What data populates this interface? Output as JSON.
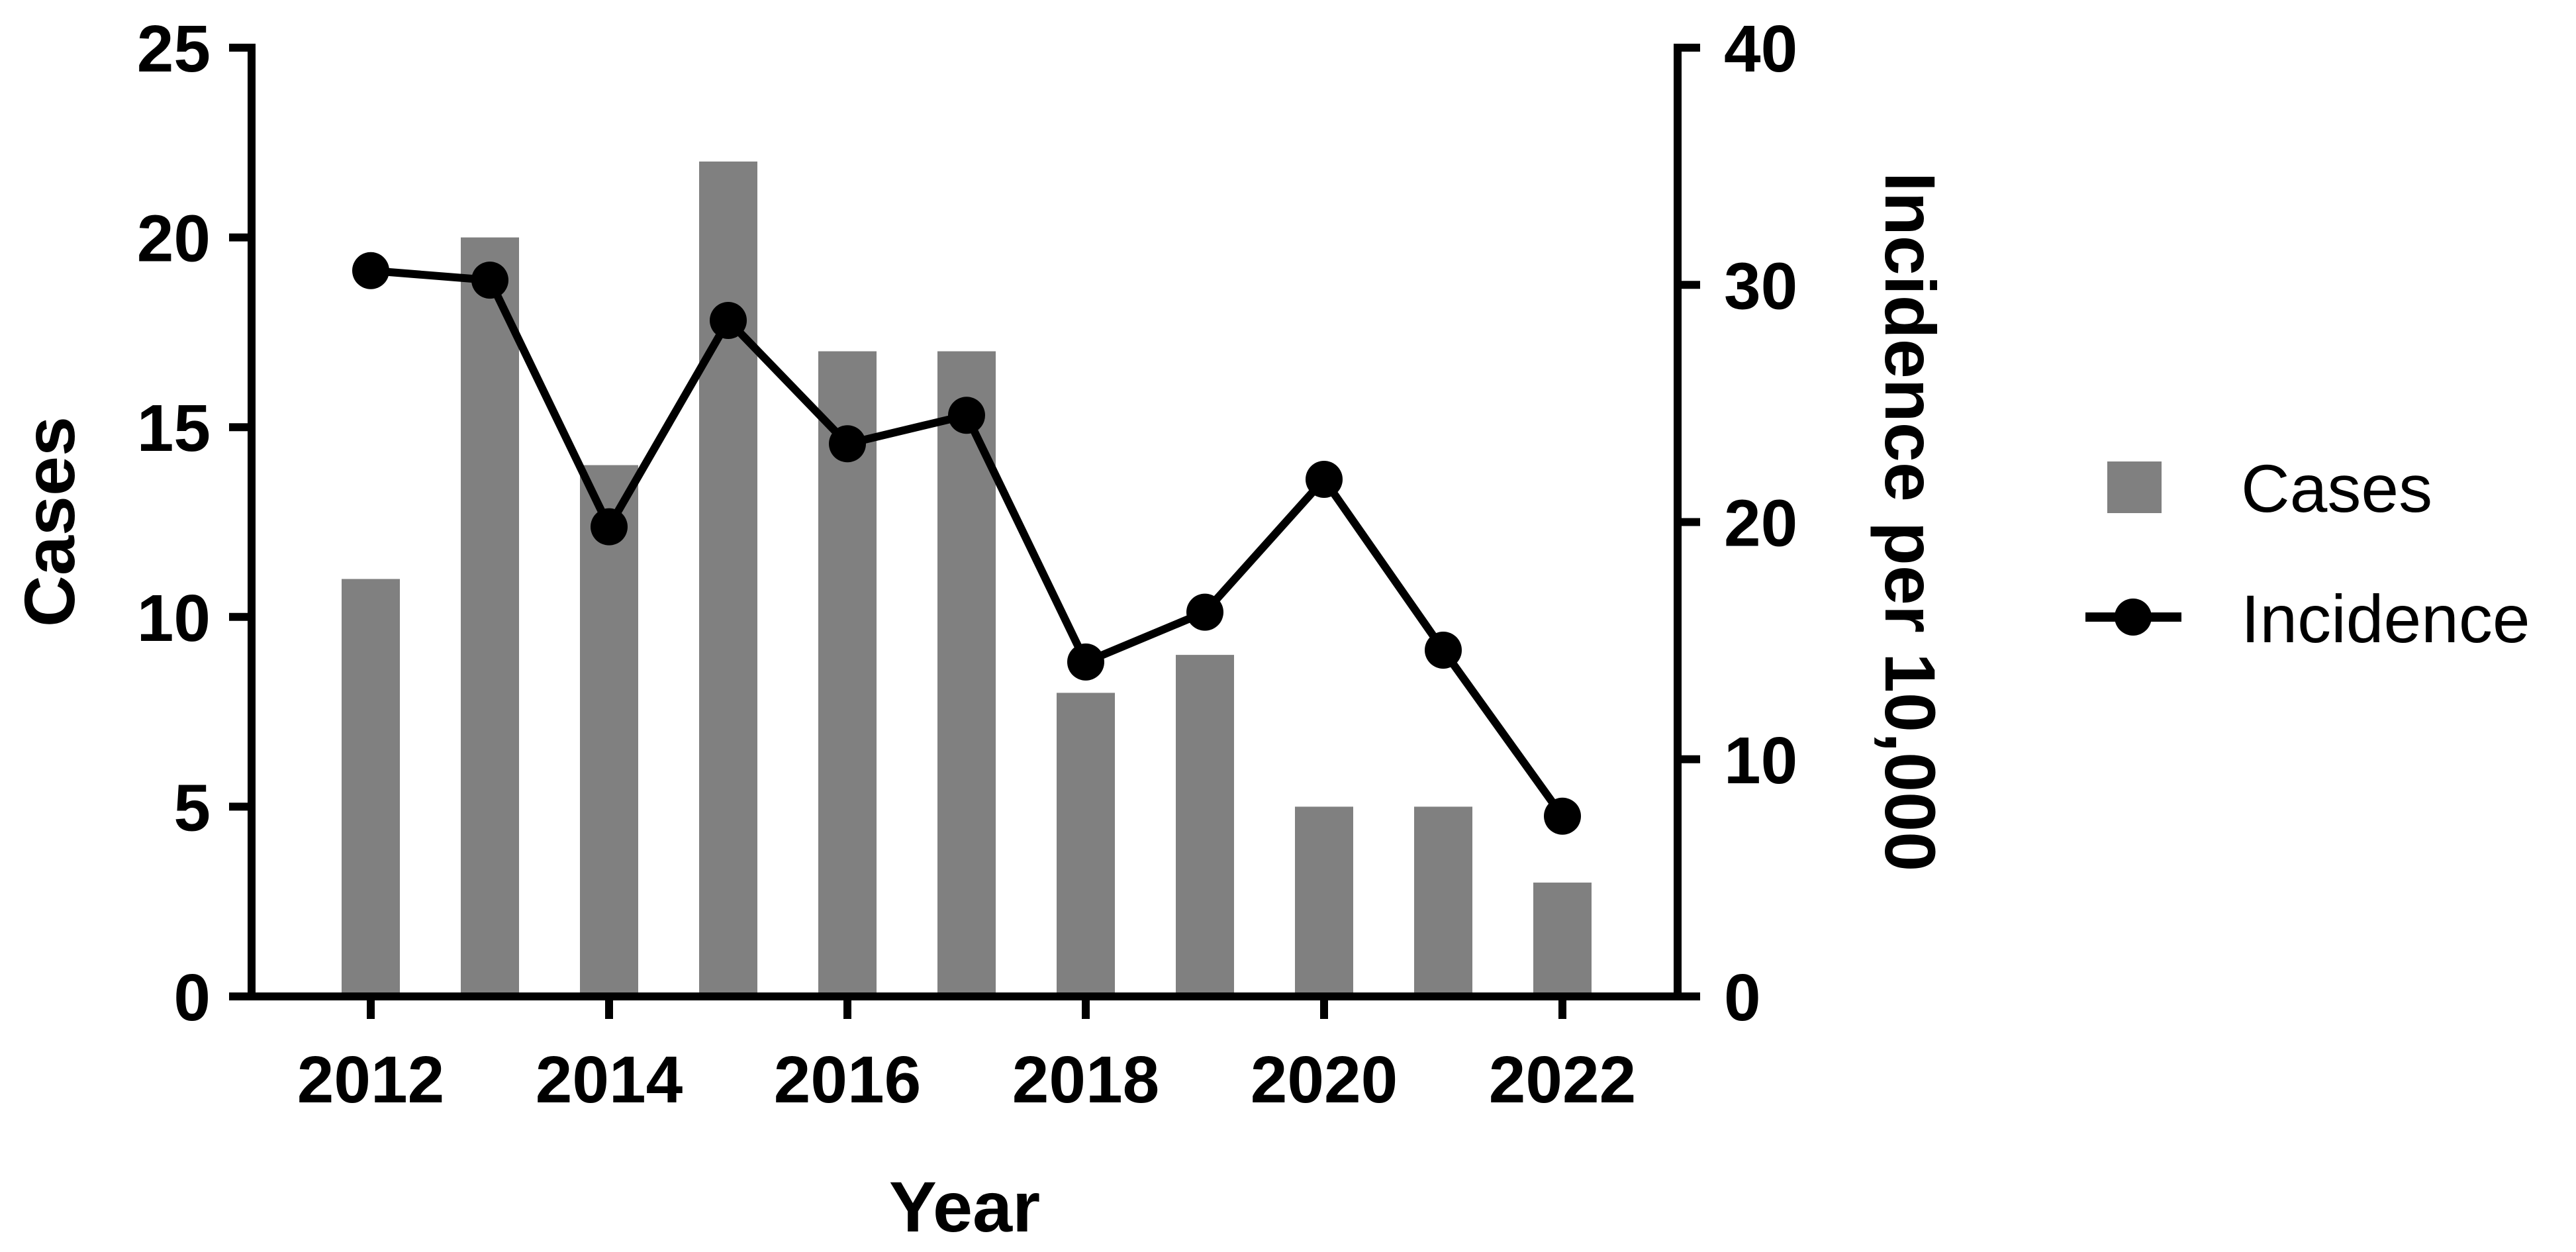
{
  "chart_data": {
    "type": "bar",
    "xlabel": "Year",
    "ylabel": "Cases",
    "y2label": "Incidence per 10,000",
    "x": [
      2012,
      2013,
      2014,
      2015,
      2016,
      2017,
      2018,
      2019,
      2020,
      2021,
      2022
    ],
    "x_tick_labels": [
      "2012",
      "2014",
      "2016",
      "2018",
      "2020",
      "2022"
    ],
    "ylim": [
      0,
      25
    ],
    "y_ticks": [
      "0",
      "5",
      "10",
      "15",
      "20",
      "25"
    ],
    "y2lim": [
      0,
      40
    ],
    "y2_ticks": [
      "0",
      "10",
      "20",
      "30",
      "40"
    ],
    "legend_position": "right",
    "series": [
      {
        "name": "Cases",
        "type": "bar",
        "axis": "left",
        "color": "#808080",
        "values": [
          11,
          20,
          14,
          22,
          17,
          17,
          8,
          9,
          5,
          5,
          3
        ]
      },
      {
        "name": "Incidence",
        "type": "line",
        "axis": "right",
        "color": "#000000",
        "values": [
          30.6,
          30.2,
          19.8,
          28.5,
          23.3,
          24.5,
          14.1,
          16.2,
          21.8,
          14.6,
          7.6
        ]
      }
    ]
  }
}
